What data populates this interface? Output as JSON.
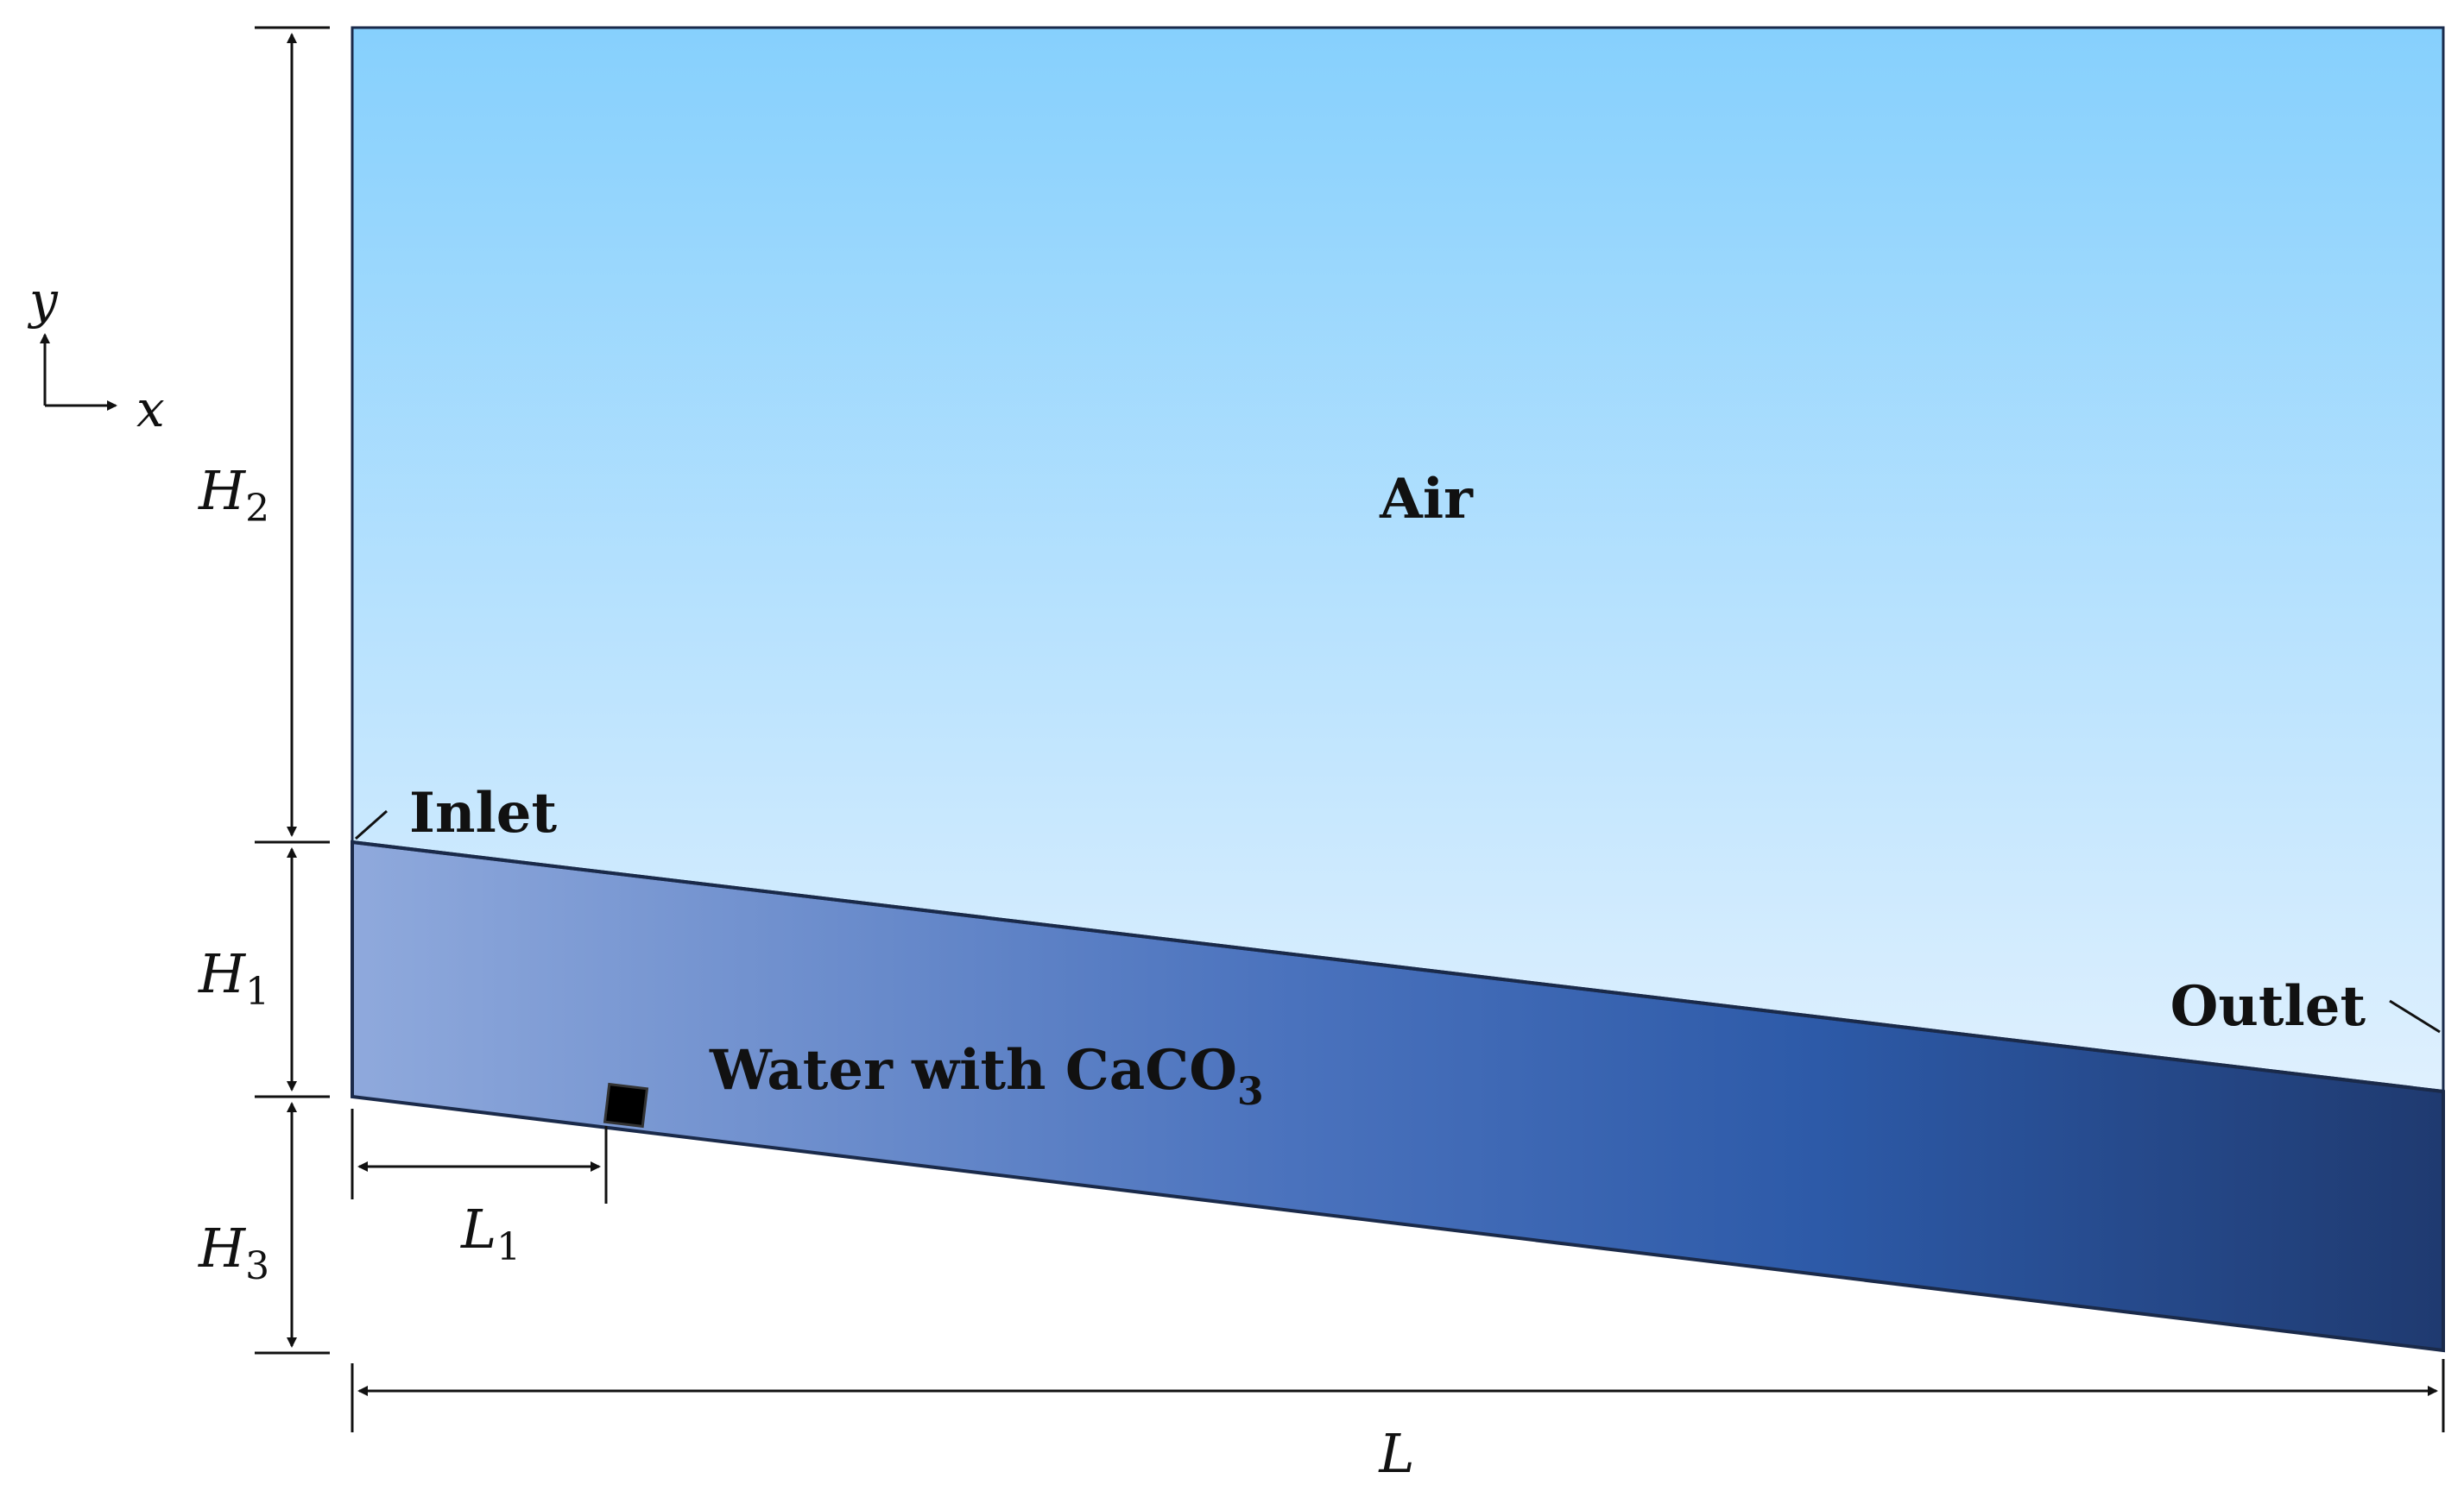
{
  "regions": {
    "air": "Air",
    "water_main": "Water with CaCO",
    "water_sub": "3"
  },
  "boundaries": {
    "inlet": "Inlet",
    "outlet": "Outlet"
  },
  "dimensions": {
    "H2": {
      "main": "H",
      "sub": "2"
    },
    "H1": {
      "main": "H",
      "sub": "1"
    },
    "H3": {
      "main": "H",
      "sub": "3"
    },
    "L1": {
      "main": "L",
      "sub": "1"
    },
    "L": {
      "main": "L"
    }
  },
  "axes": {
    "x": "x",
    "y": "y"
  },
  "colors": {
    "air_top": "#86d0fd",
    "air_bottom": "#dff0fe",
    "water_left": "#8fa9dc",
    "water_mid": "#2d5aa8",
    "water_right": "#1f3a70",
    "outline": "#1a2a4a"
  }
}
